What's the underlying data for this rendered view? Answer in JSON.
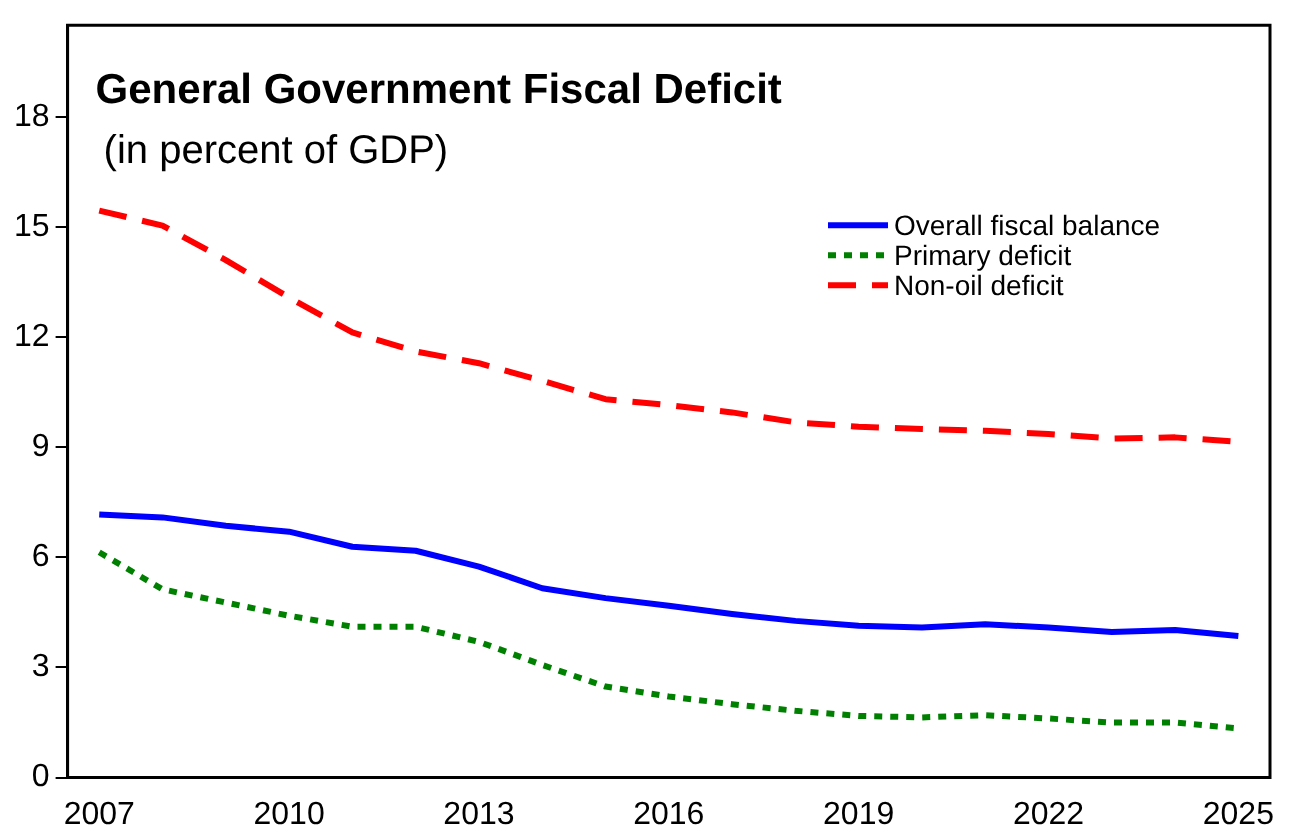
{
  "chart_data": {
    "type": "line",
    "title": "General Government Fiscal Deficit",
    "subtitle": "(in percent of GDP)",
    "x": [
      2007,
      2008,
      2009,
      2010,
      2011,
      2012,
      2013,
      2014,
      2015,
      2016,
      2017,
      2018,
      2019,
      2020,
      2021,
      2022,
      2023,
      2024,
      2025
    ],
    "xlim": [
      2006.5,
      2025.5
    ],
    "xticks": [
      2007,
      2010,
      2013,
      2016,
      2019,
      2022,
      2025
    ],
    "ylim": [
      0,
      20.5
    ],
    "yticks": [
      0,
      3,
      6,
      9,
      12,
      15,
      18
    ],
    "grid": false,
    "legend": "top right",
    "marker": "none",
    "series": [
      {
        "name": "Overall fiscal balance",
        "color": "#0000ff",
        "line_style": "solid",
        "values": [
          7.17,
          7.09,
          6.86,
          6.7,
          6.29,
          6.18,
          5.75,
          5.16,
          4.89,
          4.68,
          4.46,
          4.27,
          4.14,
          4.09,
          4.18,
          4.09,
          3.97,
          4.02,
          3.86
        ]
      },
      {
        "name": "Primary deficit",
        "color": "#008000",
        "line_style": "dotted",
        "values": [
          6.14,
          5.13,
          4.77,
          4.41,
          4.11,
          4.11,
          3.7,
          3.07,
          2.48,
          2.21,
          2.0,
          1.82,
          1.68,
          1.64,
          1.7,
          1.61,
          1.5,
          1.5,
          1.34
        ]
      },
      {
        "name": "Non-oil deficit",
        "color": "#ff0000",
        "line_style": "dashed",
        "values": [
          15.45,
          15.04,
          14.1,
          13.08,
          12.13,
          11.61,
          11.29,
          10.81,
          10.31,
          10.15,
          9.95,
          9.68,
          9.56,
          9.5,
          9.45,
          9.36,
          9.24,
          9.27,
          9.15
        ]
      }
    ]
  }
}
